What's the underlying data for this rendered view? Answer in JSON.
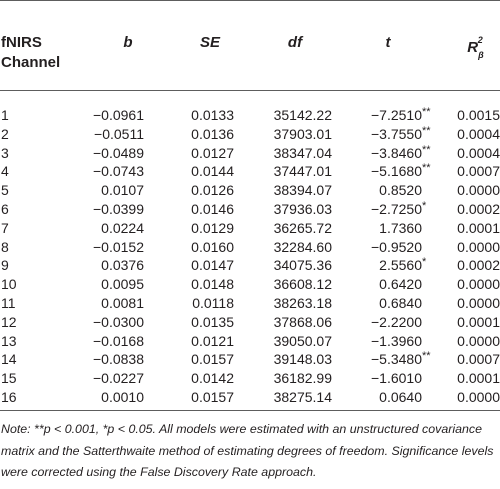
{
  "headers": {
    "channel_line1": "fNIRS",
    "channel_line2": "Channel",
    "b": "b",
    "se": "SE",
    "df": "df",
    "t": "t",
    "r2_base": "R",
    "r2_sub": "β",
    "r2_sup": "2"
  },
  "rows": [
    {
      "channel": "1",
      "b": "−0.0961",
      "se": "0.0133",
      "df": "35142.22",
      "t": "−7.2510",
      "sig": "**",
      "r2": "0.0015"
    },
    {
      "channel": "2",
      "b": "−0.0511",
      "se": "0.0136",
      "df": "37903.01",
      "t": "−3.7550",
      "sig": "**",
      "r2": "0.0004"
    },
    {
      "channel": "3",
      "b": "−0.0489",
      "se": "0.0127",
      "df": "38347.04",
      "t": "−3.8460",
      "sig": "**",
      "r2": "0.0004"
    },
    {
      "channel": "4",
      "b": "−0.0743",
      "se": "0.0144",
      "df": "37447.01",
      "t": "−5.1680",
      "sig": "**",
      "r2": "0.0007"
    },
    {
      "channel": "5",
      "b": "0.0107",
      "se": "0.0126",
      "df": "38394.07",
      "t": "0.8520",
      "sig": "",
      "r2": "0.0000"
    },
    {
      "channel": "6",
      "b": "−0.0399",
      "se": "0.0146",
      "df": "37936.03",
      "t": "−2.7250",
      "sig": "*",
      "r2": "0.0002"
    },
    {
      "channel": "7",
      "b": "0.0224",
      "se": "0.0129",
      "df": "36265.72",
      "t": "1.7360",
      "sig": "",
      "r2": "0.0001"
    },
    {
      "channel": "8",
      "b": "−0.0152",
      "se": "0.0160",
      "df": "32284.60",
      "t": "−0.9520",
      "sig": "",
      "r2": "0.0000"
    },
    {
      "channel": "9",
      "b": "0.0376",
      "se": "0.0147",
      "df": "34075.36",
      "t": "2.5560",
      "sig": "*",
      "r2": "0.0002"
    },
    {
      "channel": "10",
      "b": "0.0095",
      "se": "0.0148",
      "df": "36608.12",
      "t": "0.6420",
      "sig": "",
      "r2": "0.0000"
    },
    {
      "channel": "11",
      "b": "0.0081",
      "se": "0.0118",
      "df": "38263.18",
      "t": "0.6840",
      "sig": "",
      "r2": "0.0000"
    },
    {
      "channel": "12",
      "b": "−0.0300",
      "se": "0.0135",
      "df": "37868.06",
      "t": "−2.2200",
      "sig": "",
      "r2": "0.0001"
    },
    {
      "channel": "13",
      "b": "−0.0168",
      "se": "0.0121",
      "df": "39050.07",
      "t": "−1.3960",
      "sig": "",
      "r2": "0.0000"
    },
    {
      "channel": "14",
      "b": "−0.0838",
      "se": "0.0157",
      "df": "39148.03",
      "t": "−5.3480",
      "sig": "**",
      "r2": "0.0007"
    },
    {
      "channel": "15",
      "b": "−0.0227",
      "se": "0.0142",
      "df": "36182.99",
      "t": "−1.6010",
      "sig": "",
      "r2": "0.0001"
    },
    {
      "channel": "16",
      "b": "0.0010",
      "se": "0.0157",
      "df": "38275.14",
      "t": "0.0640",
      "sig": "",
      "r2": "0.0000"
    }
  ],
  "note": "Note: **p < 0.001, *p < 0.05. All models were estimated with an unstructured covariance matrix and the Satterthwaite method of estimating degrees of freedom. Significance levels were corrected using the False Discovery Rate approach."
}
